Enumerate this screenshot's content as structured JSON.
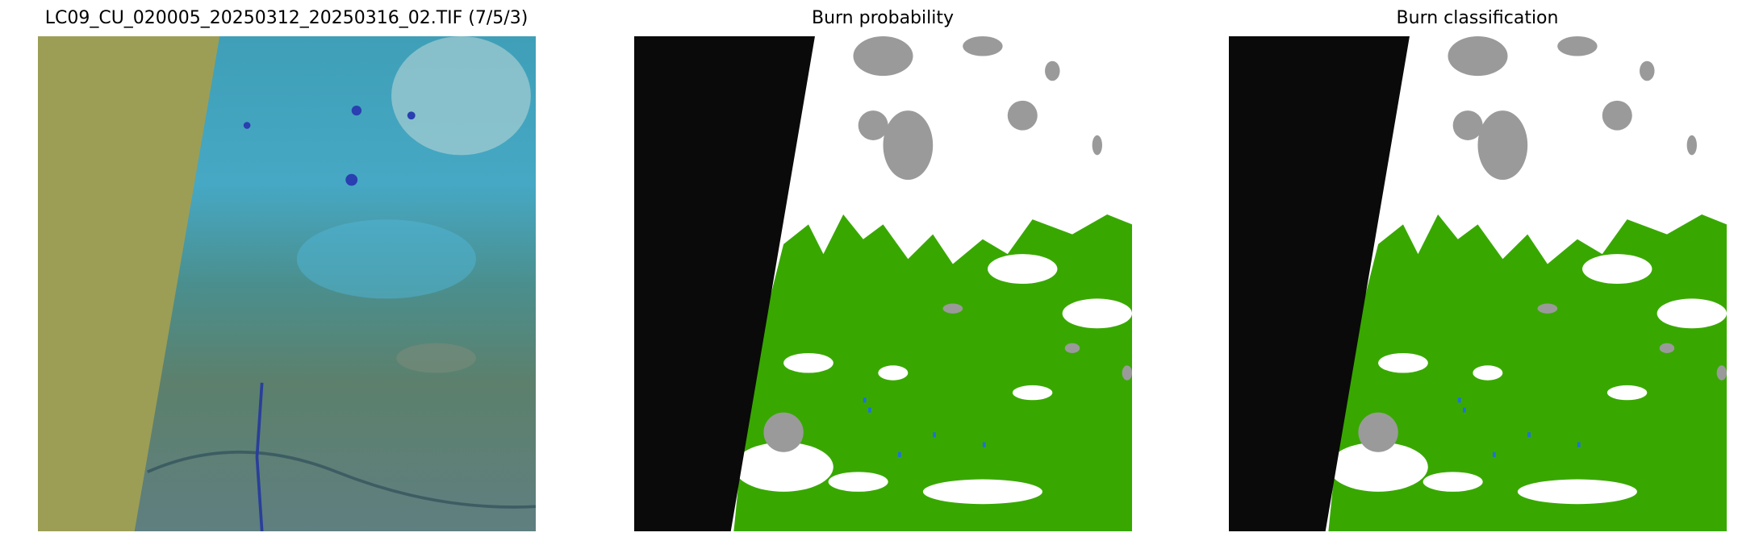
{
  "panels": [
    {
      "title": "LC09_CU_020005_20250312_20250316_02.TIF (7/5/3)",
      "kind": "rgb-composite"
    },
    {
      "title": "Burn probability",
      "kind": "probability-map"
    },
    {
      "title": "Burn classification",
      "kind": "classification-map"
    }
  ],
  "colors": {
    "nodata_rgb": "#9c9e56",
    "nodata_map": "#0a0a0a",
    "burned": "#38a800",
    "cloud": "#9a9a9a",
    "unburned": "#ffffff",
    "water": "#1f6fe0"
  }
}
